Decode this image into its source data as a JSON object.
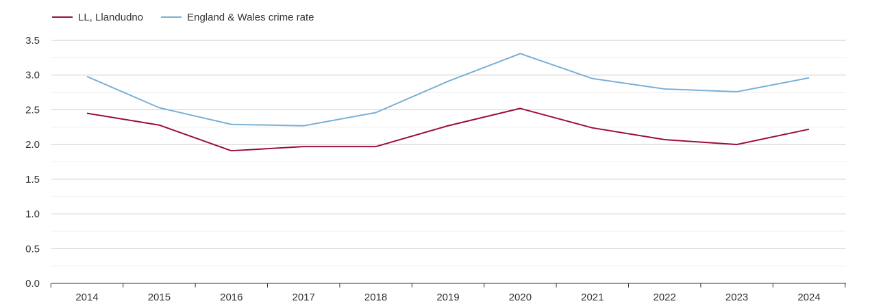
{
  "chart_data": {
    "type": "line",
    "title": "",
    "xlabel": "",
    "ylabel": "",
    "categories": [
      "2014",
      "2015",
      "2016",
      "2017",
      "2018",
      "2019",
      "2020",
      "2021",
      "2022",
      "2023",
      "2024"
    ],
    "series": [
      {
        "name": "LL, Llandudno",
        "color": "#9b0e35",
        "values": [
          2.45,
          2.28,
          1.91,
          1.97,
          1.97,
          2.27,
          2.52,
          2.24,
          2.07,
          2.0,
          2.22
        ]
      },
      {
        "name": "England & Wales crime rate",
        "color": "#77b0d6",
        "values": [
          2.98,
          2.53,
          2.29,
          2.27,
          2.46,
          2.91,
          3.31,
          2.95,
          2.8,
          2.76,
          2.96
        ]
      }
    ],
    "ylim": [
      0,
      3.5
    ],
    "yticks": [
      "0.0",
      "0.5",
      "1.0",
      "1.5",
      "2.0",
      "2.5",
      "3.0",
      "3.5"
    ],
    "grid": true,
    "legend_position": "top-left"
  }
}
